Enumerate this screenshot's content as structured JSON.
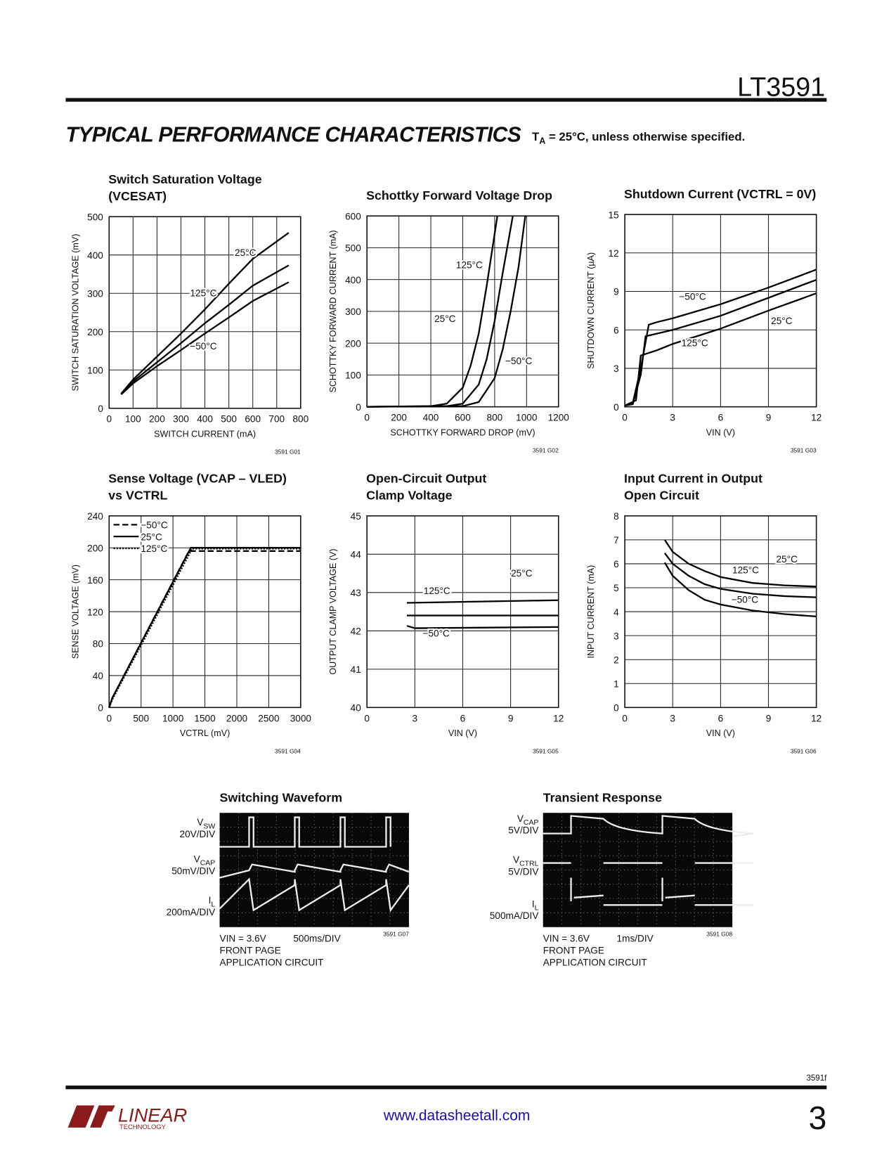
{
  "header": {
    "part": "LT3591",
    "section": "TYPICAL PERFORMANCE CHARACTERISTICS",
    "condition": {
      "main": "T",
      "sub": "A",
      "rest": " = 25°C, unless otherwise specified."
    }
  },
  "chart_data": [
    {
      "type": "line",
      "title": [
        "Switch Saturation Voltage",
        "(VCESAT)"
      ],
      "x_label": "SWITCH CURRENT (mA)",
      "y_label": "SWITCH SATURATION VOLTAGE (mV)",
      "code": "3591 G01",
      "grid": true,
      "color": "#000",
      "xlim": [
        0,
        800
      ],
      "xticks": [
        0,
        100,
        200,
        300,
        400,
        500,
        600,
        700,
        800
      ],
      "ylim": [
        0,
        500
      ],
      "yticks": [
        0,
        100,
        200,
        300,
        400,
        500
      ],
      "series": [
        {
          "name": "125°C",
          "x": [
            50,
            100,
            200,
            300,
            400,
            500,
            600,
            750
          ],
          "values": [
            38,
            75,
            135,
            195,
            258,
            325,
            390,
            458
          ]
        },
        {
          "name": "25°C",
          "x": [
            50,
            100,
            200,
            300,
            400,
            500,
            600,
            750
          ],
          "values": [
            38,
            70,
            120,
            170,
            222,
            270,
            320,
            373
          ]
        },
        {
          "name": "−50°C",
          "x": [
            50,
            100,
            200,
            300,
            400,
            500,
            600,
            750
          ],
          "values": [
            36,
            65,
            110,
            152,
            195,
            237,
            280,
            329
          ]
        }
      ]
    },
    {
      "type": "line",
      "title": [
        "Schottky Forward Voltage Drop"
      ],
      "x_label": "SCHOTTKY FORWARD DROP (mV)",
      "y_label": "SCHOTTKY FORWARD CURRENT (mA)",
      "code": "3591 G02",
      "grid": true,
      "color": "#000",
      "xlim": [
        0,
        1200
      ],
      "xticks": [
        0,
        200,
        400,
        600,
        800,
        1000,
        1200
      ],
      "ylim": [
        0,
        600
      ],
      "yticks": [
        0,
        100,
        200,
        300,
        400,
        500,
        600
      ],
      "series": [
        {
          "name": "125°C",
          "x": [
            0,
            400,
            500,
            600,
            650,
            700,
            750,
            817
          ],
          "values": [
            0,
            2,
            10,
            60,
            130,
            230,
            380,
            600
          ]
        },
        {
          "name": "25°C",
          "x": [
            0,
            500,
            600,
            700,
            750,
            800,
            850,
            914
          ],
          "values": [
            0,
            2,
            10,
            70,
            150,
            270,
            420,
            600
          ]
        },
        {
          "name": "−50°C",
          "x": [
            0,
            600,
            700,
            800,
            850,
            900,
            950,
            992
          ],
          "values": [
            0,
            2,
            15,
            90,
            180,
            300,
            440,
            600
          ]
        }
      ]
    },
    {
      "type": "line",
      "title": [
        "Shutdown Current (VCTRL = 0V)"
      ],
      "x_label": "VIN (V)",
      "y_label": "SHUTDOWN CURRENT (µA)",
      "code": "3591 G03",
      "grid": true,
      "color": "#000",
      "xlim": [
        0,
        12
      ],
      "xticks": [
        0,
        3,
        6,
        9,
        12
      ],
      "ylim": [
        0,
        15
      ],
      "yticks": [
        0,
        3,
        6,
        9,
        12,
        15
      ],
      "series": [
        {
          "name": "−50°C",
          "x": [
            0,
            0.5,
            1,
            1.5,
            2,
            3,
            6,
            9,
            12
          ],
          "values": [
            0.1,
            0.3,
            3,
            6.4,
            6.6,
            6.9,
            8,
            9.3,
            10.7
          ]
        },
        {
          "name": "25°C",
          "x": [
            0,
            0.5,
            1,
            1.3,
            2,
            3,
            6,
            9,
            12
          ],
          "values": [
            0.1,
            0.2,
            2.5,
            5.5,
            5.7,
            6,
            7.1,
            8.5,
            9.9
          ]
        },
        {
          "name": "125°C",
          "x": [
            0,
            0.7,
            1,
            2,
            3,
            6,
            9,
            12
          ],
          "values": [
            0.1,
            0.5,
            4,
            4.4,
            4.9,
            6.1,
            7.5,
            8.85
          ]
        }
      ]
    },
    {
      "type": "line",
      "title": [
        "Sense Voltage (VCAP – VLED)",
        "vs VCTRL"
      ],
      "x_label": "VCTRL (mV)",
      "y_label": "SENSE VOLTAGE (mV)",
      "code": "3591 G04",
      "grid": true,
      "color": "#000",
      "legend": "upper left",
      "xlim": [
        0,
        3000
      ],
      "xticks": [
        0,
        500,
        1000,
        1500,
        2000,
        2500,
        3000
      ],
      "ylim": [
        0,
        240
      ],
      "yticks": [
        0,
        40,
        80,
        120,
        160,
        200,
        240
      ],
      "series": [
        {
          "name": "−50°C",
          "dash": "dashed",
          "x": [
            0,
            50,
            1250,
            3000
          ],
          "values": [
            0,
            12,
            196,
            196
          ]
        },
        {
          "name": "25°C",
          "dash": "solid",
          "x": [
            0,
            50,
            1280,
            3000
          ],
          "values": [
            0,
            12,
            200,
            200
          ]
        },
        {
          "name": "125°C",
          "dash": "dotted",
          "x": [
            0,
            50,
            1300,
            3000
          ],
          "values": [
            0,
            10,
            199,
            199
          ]
        }
      ]
    },
    {
      "type": "line",
      "title": [
        "Open-Circuit Output",
        "Clamp Voltage"
      ],
      "x_label": "VIN (V)",
      "y_label": "OUTPUT CLAMP VOLTAGE (V)",
      "code": "3591 G05",
      "grid": true,
      "color": "#000",
      "xlim": [
        0,
        12
      ],
      "xticks": [
        0,
        3,
        6,
        9,
        12
      ],
      "ylim": [
        40,
        45
      ],
      "yticks": [
        40,
        41,
        42,
        43,
        44,
        45
      ],
      "series": [
        {
          "name": "125°C",
          "x": [
            2.5,
            12
          ],
          "values": [
            42.73,
            42.8
          ]
        },
        {
          "name": "25°C",
          "x": [
            2.5,
            12
          ],
          "values": [
            42.4,
            42.4
          ]
        },
        {
          "name": "−50°C",
          "x": [
            2.5,
            3,
            12
          ],
          "values": [
            42.13,
            42.07,
            42.1
          ]
        }
      ]
    },
    {
      "type": "line",
      "title": [
        "Input Current in Output",
        "Open Circuit"
      ],
      "x_label": "VIN (V)",
      "y_label": "INPUT CURRENT (mA)",
      "code": "3591 G06",
      "grid": true,
      "color": "#000",
      "xlim": [
        0,
        12
      ],
      "xticks": [
        0,
        3,
        6,
        9,
        12
      ],
      "ylim": [
        0,
        8
      ],
      "yticks": [
        0,
        1,
        2,
        3,
        4,
        5,
        6,
        7,
        8
      ],
      "series": [
        {
          "name": "25°C",
          "x": [
            2.5,
            3,
            4,
            5,
            6,
            8,
            10,
            12
          ],
          "values": [
            7,
            6.5,
            6,
            5.7,
            5.45,
            5.2,
            5.1,
            5.05
          ]
        },
        {
          "name": "125°C",
          "x": [
            2.5,
            3,
            4,
            5,
            6,
            8,
            10,
            12
          ],
          "values": [
            6.45,
            6,
            5.5,
            5.15,
            4.95,
            4.75,
            4.65,
            4.6
          ]
        },
        {
          "name": "−50°C",
          "x": [
            2.5,
            3,
            4,
            5,
            6,
            8,
            10,
            12
          ],
          "values": [
            6.05,
            5.5,
            4.9,
            4.5,
            4.3,
            4.05,
            3.9,
            3.8
          ]
        }
      ]
    }
  ],
  "scopes": [
    {
      "title": "Switching Waveform",
      "code": "3591 G07",
      "timebase": "500ms/DIV",
      "channels": [
        {
          "main": "V",
          "sub": "SW",
          "scale": "20V/DIV"
        },
        {
          "main": "V",
          "sub": "CAP",
          "scale": "50mV/DIV"
        },
        {
          "main": "I",
          "sub": "L",
          "scale": "200mA/DIV"
        }
      ],
      "notes": [
        "VIN = 3.6V",
        "FRONT PAGE",
        "APPLICATION CIRCUIT"
      ]
    },
    {
      "title": "Transient Response",
      "code": "3591 G08",
      "timebase": "1ms/DIV",
      "channels": [
        {
          "main": "V",
          "sub": "CAP",
          "scale": "5V/DIV"
        },
        {
          "main": "V",
          "sub": "CTRL",
          "scale": "5V/DIV"
        },
        {
          "main": "I",
          "sub": "L",
          "scale": "500mA/DIV"
        }
      ],
      "notes": [
        "VIN = 3.6V",
        "FRONT PAGE",
        "APPLICATION CIRCUIT"
      ]
    }
  ],
  "footer": {
    "page_code": "3591f",
    "logo": "LINEAR",
    "logo_sub": "TECHNOLOGY",
    "url": "www.datasheetall.com",
    "page": "3"
  }
}
